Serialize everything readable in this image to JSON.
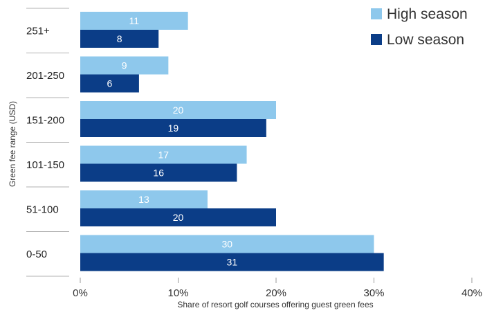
{
  "chart_data": {
    "type": "bar",
    "orientation": "horizontal",
    "categories": [
      "251+",
      "201-250",
      "151-200",
      "101-150",
      "51-100",
      "0-50"
    ],
    "series": [
      {
        "name": "High season",
        "values": [
          11,
          9,
          20,
          17,
          13,
          30
        ],
        "color": "#8ec8ec"
      },
      {
        "name": "Low season",
        "values": [
          8,
          6,
          19,
          16,
          20,
          31
        ],
        "color": "#0b3d87"
      }
    ],
    "xlabel": "Share of resort golf courses offering guest green fees",
    "ylabel": "Green fee range (USD)",
    "xlim": [
      0,
      40
    ],
    "xticks": [
      0,
      10,
      20,
      30,
      40
    ],
    "xtick_labels": [
      "0%",
      "10%",
      "20%",
      "30%",
      "40%"
    ],
    "legend_position": "top-right",
    "grid": false
  }
}
